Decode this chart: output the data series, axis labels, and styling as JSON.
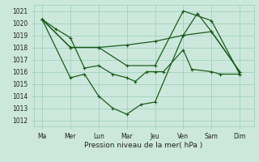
{
  "title": "",
  "xlabel": "Pression niveau de la mer( hPa )",
  "bg_color": "#cce8dc",
  "grid_color": "#99ccb8",
  "line_color": "#1a5c1a",
  "xlabels": [
    "Ma",
    "Mer",
    "Lun",
    "Mar",
    "Jeu",
    "Ven",
    "Sam",
    "Dim"
  ],
  "x_ticks": [
    0,
    1,
    2,
    3,
    4,
    5,
    6,
    7
  ],
  "ylim": [
    1011.5,
    1021.5
  ],
  "yticks": [
    1012,
    1013,
    1014,
    1015,
    1016,
    1017,
    1018,
    1019,
    1020,
    1021
  ],
  "series1_x": [
    0,
    1,
    2,
    3,
    4,
    5,
    6,
    7
  ],
  "series1_y": [
    1020.3,
    1018.0,
    1018.0,
    1018.2,
    1018.5,
    1019.0,
    1019.3,
    1016.0
  ],
  "series2_x": [
    0,
    1,
    2,
    3,
    4,
    5,
    6,
    7
  ],
  "series2_y": [
    1020.3,
    1018.0,
    1018.0,
    1016.5,
    1016.5,
    1021.0,
    1020.2,
    1015.8
  ],
  "series3_x": [
    0,
    0.5,
    1,
    1.5,
    2,
    2.5,
    3,
    3.3,
    3.7,
    4,
    4.3,
    5,
    5.3,
    6,
    6.3,
    7
  ],
  "series3_y": [
    1020.3,
    1019.5,
    1018.8,
    1016.3,
    1016.5,
    1015.8,
    1015.5,
    1015.2,
    1016.0,
    1016.0,
    1016.0,
    1017.8,
    1016.2,
    1016.0,
    1015.8,
    1015.8
  ],
  "series4_x": [
    0,
    1,
    1.5,
    2,
    2.5,
    3,
    3.5,
    4,
    5,
    5.5,
    6,
    7
  ],
  "series4_y": [
    1020.3,
    1015.5,
    1015.8,
    1014.0,
    1013.0,
    1012.5,
    1013.3,
    1013.5,
    1019.0,
    1020.8,
    1019.3,
    1016.0
  ]
}
